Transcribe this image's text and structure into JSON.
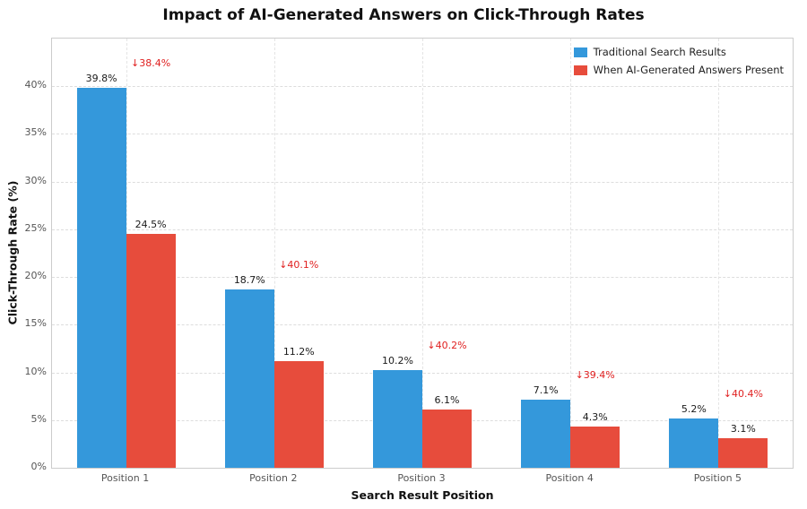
{
  "title": "Impact of AI-Generated Answers on Click-Through Rates",
  "chart_data": {
    "type": "bar",
    "title": "Impact of AI-Generated Answers on Click-Through Rates",
    "categories": [
      "Position 1",
      "Position 2",
      "Position 3",
      "Position 4",
      "Position 5"
    ],
    "series": [
      {
        "name": "Traditional Search Results",
        "color": "#3498db",
        "values": [
          39.8,
          18.7,
          10.2,
          7.1,
          5.2
        ]
      },
      {
        "name": "When AI-Generated Answers Present",
        "color": "#e74c3c",
        "values": [
          24.5,
          11.2,
          6.1,
          4.3,
          3.1
        ]
      }
    ],
    "annotations": [
      "↓38.4%",
      "↓40.1%",
      "↓40.2%",
      "↓39.4%",
      "↓40.4%"
    ],
    "annotation_color": "#e02020",
    "xlabel": "Search Result Position",
    "ylabel": "Click-Through Rate (%)",
    "ylim": [
      0,
      45
    ],
    "yticks": [
      0,
      5,
      10,
      15,
      20,
      25,
      30,
      35,
      40
    ],
    "ytick_labels": [
      "0%",
      "5%",
      "10%",
      "15%",
      "20%",
      "25%",
      "30%",
      "35%",
      "40%"
    ],
    "grid": "dashed",
    "legend_position": "top-right"
  }
}
